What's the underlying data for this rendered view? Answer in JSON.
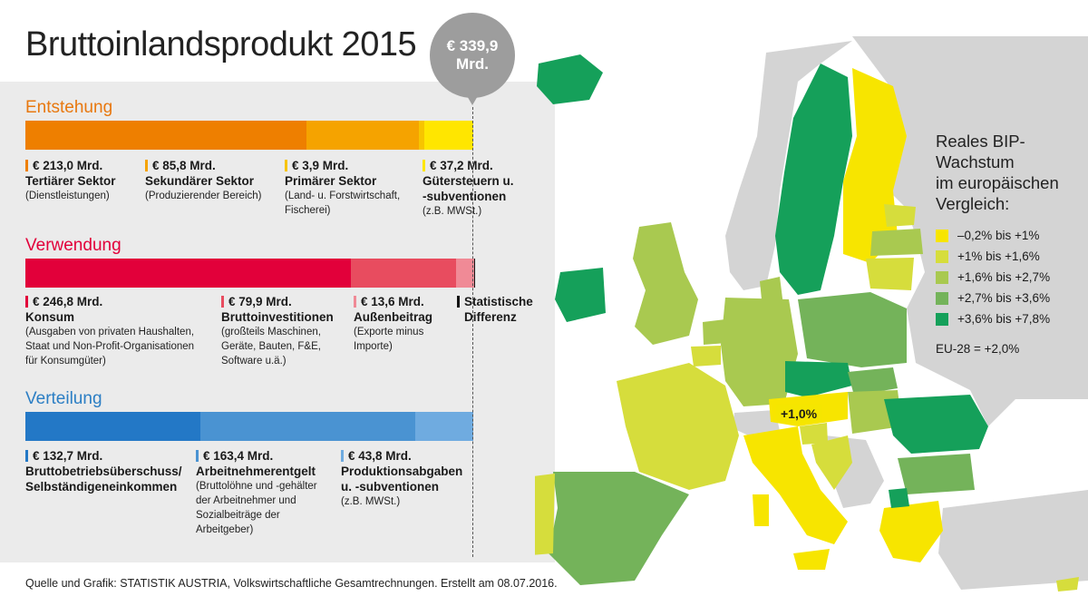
{
  "title": "Bruttoinlandsprodukt 2015",
  "total": "€ 339,9 Mrd.",
  "sections": [
    {
      "title": "Entstehung",
      "color": "#e8780f",
      "items": [
        {
          "value": "€ 213,0 Mrd.",
          "label": "Tertiärer Sektor",
          "sub": "(Dienstleistungen)",
          "color": "#ee7f00"
        },
        {
          "value": "€ 85,8 Mrd.",
          "label": "Sekundärer Sektor",
          "sub": "(Produzierender Bereich)",
          "color": "#f5a300"
        },
        {
          "value": "€ 3,9 Mrd.",
          "label": "Primärer Sektor",
          "sub": "(Land- u. Forstwirtschaft, Fischerei)",
          "color": "#f7c400"
        },
        {
          "value": "€ 37,2 Mrd.",
          "label": "Gütersteuern u. -subventionen",
          "sub": "(z.B. MWSt.)",
          "color": "#ffe600"
        }
      ]
    },
    {
      "title": "Verwendung",
      "color": "#e2003a",
      "items": [
        {
          "value": "€ 246,8 Mrd.",
          "label": "Konsum",
          "sub": "(Ausgaben von privaten Haushalten, Staat und Non-Profit-Organisationen für Konsumgüter)",
          "color": "#e2003a"
        },
        {
          "value": "€ 79,9 Mrd.",
          "label": "Bruttoinvestitionen",
          "sub": "(großteils Maschinen, Geräte, Bauten, F&E, Software u.ä.)",
          "color": "#e84c5f"
        },
        {
          "value": "€ 13,6 Mrd.",
          "label": "Außenbeitrag",
          "sub": "(Exporte minus Importe)",
          "color": "#f08a96"
        },
        {
          "value": "",
          "label": "Statistische Differenz",
          "sub": "",
          "color": "#111111"
        }
      ]
    },
    {
      "title": "Verteilung",
      "color": "#2b7ec4",
      "items": [
        {
          "value": "€ 132,7 Mrd.",
          "label": "Bruttobetriebsüberschuss/ Selbständigeneinkommen",
          "sub": "",
          "color": "#2378c6"
        },
        {
          "value": "€ 163,4 Mrd.",
          "label": "Arbeitnehmerentgelt",
          "sub": "(Bruttolöhne und -gehälter der Arbeitnehmer und Sozialbeiträge der Arbeitgeber)",
          "color": "#4a93d2"
        },
        {
          "value": "€ 43,8 Mrd.",
          "label": "Produktionsabgaben u. -subventionen",
          "sub": "(z.B. MWSt.)",
          "color": "#6fabe0"
        }
      ]
    }
  ],
  "chart_data": {
    "type": "bar",
    "orientation": "horizontal-stacked",
    "title": "Bruttoinlandsprodukt 2015",
    "total": 339.9,
    "unit": "Mrd. €",
    "series": [
      {
        "name": "Entstehung",
        "values": [
          213.0,
          85.8,
          3.9,
          37.2
        ]
      },
      {
        "name": "Verwendung",
        "values": [
          246.8,
          79.9,
          13.6,
          -0.4
        ]
      },
      {
        "name": "Verteilung",
        "values": [
          132.7,
          163.4,
          43.8
        ]
      }
    ]
  },
  "map": {
    "austria_label": "+1,0%",
    "legend_title": [
      "Reales BIP-",
      "Wachstum",
      "im europäischen",
      "Vergleich:"
    ],
    "legend": [
      {
        "label": "–0,2% bis +1%",
        "color": "#f7e500"
      },
      {
        "label": "+1% bis +1,6%",
        "color": "#d6dd3c"
      },
      {
        "label": "+1,6% bis +2,7%",
        "color": "#a9c950"
      },
      {
        "label": "+2,7% bis +3,6%",
        "color": "#74b35a"
      },
      {
        "label": "+3,6% bis +7,8%",
        "color": "#15a05a"
      }
    ],
    "eu28": "EU-28 = +2,0%",
    "colors": {
      "nonEU": "#d4d4d4",
      "sea": "#ffffff"
    }
  },
  "footer": "Quelle und Grafik: STATISTIK AUSTRIA, Volkswirtschaftliche Gesamtrechnungen. Erstellt am 08.07.2016."
}
